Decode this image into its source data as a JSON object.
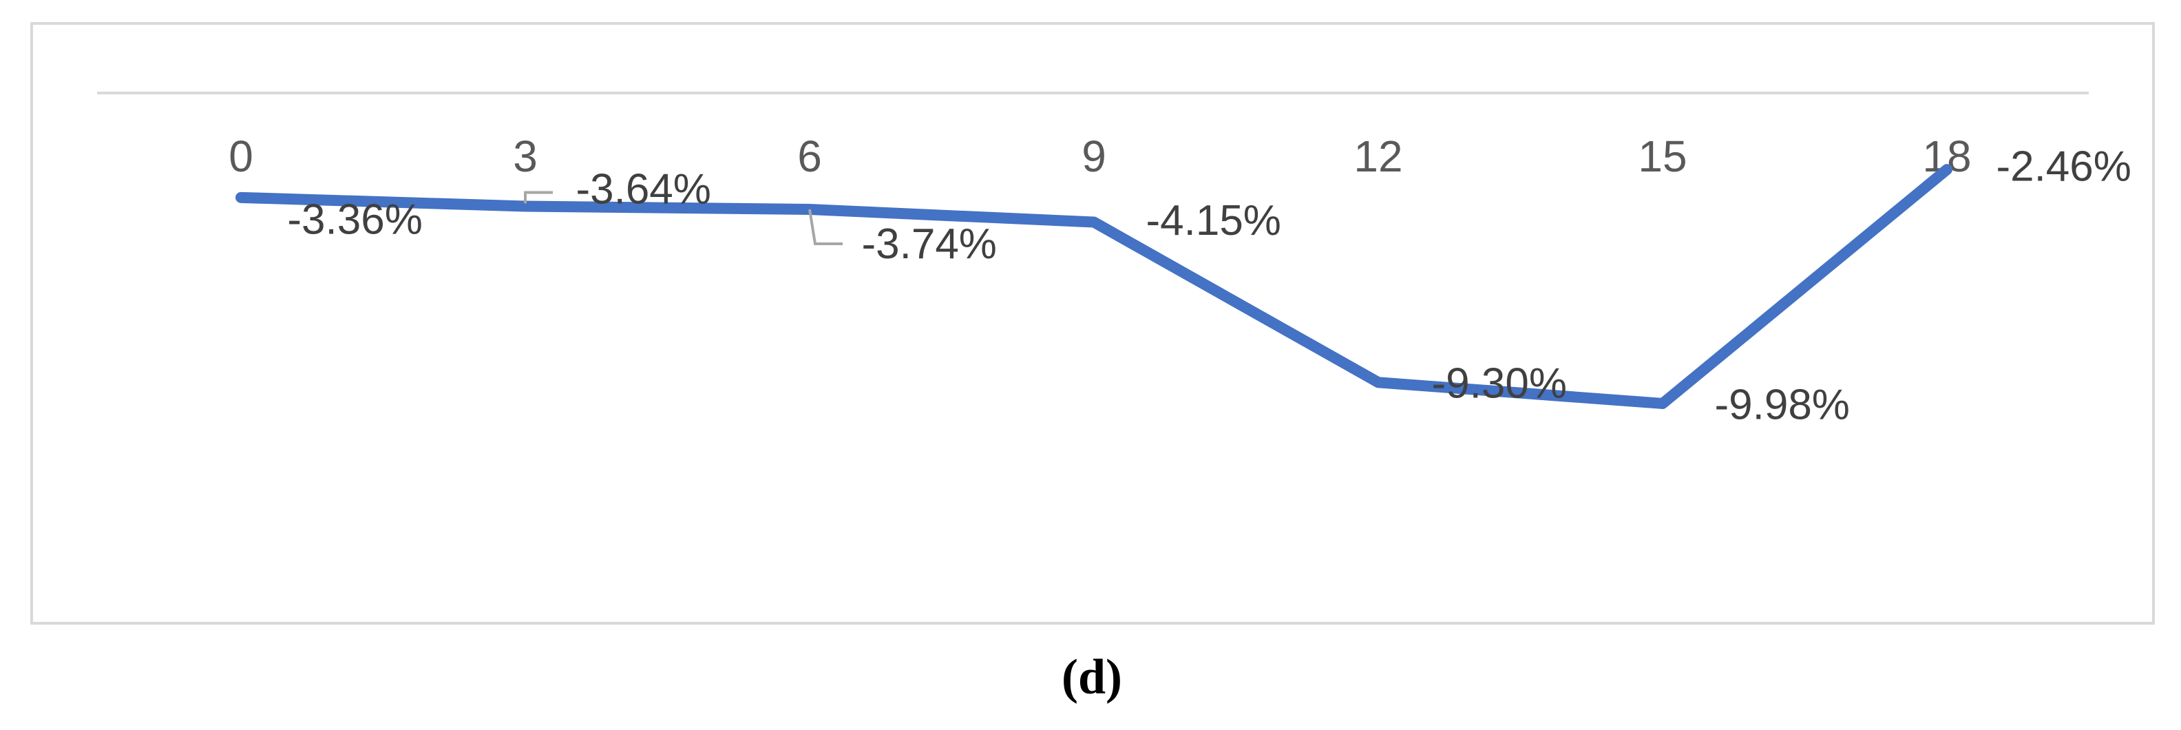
{
  "chart_data": {
    "type": "line",
    "categories": [
      "0",
      "3",
      "6",
      "9",
      "12",
      "15",
      "18"
    ],
    "series": [
      {
        "color": "#4472c4",
        "values": [
          -3.36,
          -3.64,
          -3.74,
          -4.15,
          -9.3,
          -9.98,
          -2.46
        ],
        "value_labels": [
          "-3.36%",
          "-3.64%",
          "-3.74%",
          "-4.15%",
          "-9.30%",
          "-9.98%",
          "-2.46%"
        ]
      }
    ],
    "ylim": [
      -16,
      0
    ],
    "caption": "(d)"
  }
}
